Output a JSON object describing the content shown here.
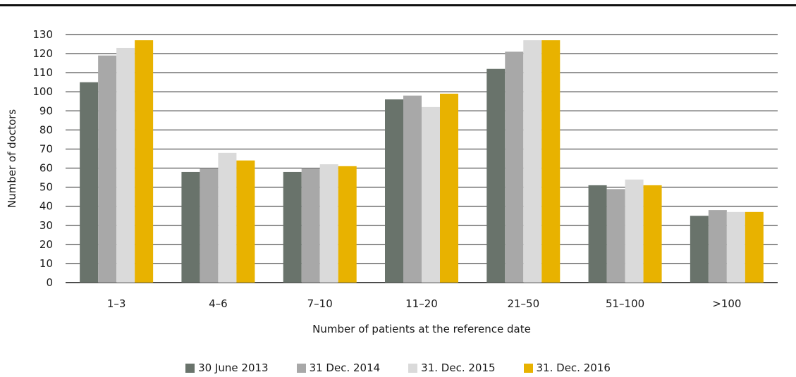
{
  "chart_data": {
    "type": "bar",
    "xlabel": "Number of patients at the reference date",
    "ylabel": "Number of doctors",
    "ylim": [
      0,
      130
    ],
    "yticks": [
      0,
      10,
      20,
      30,
      40,
      50,
      60,
      70,
      80,
      90,
      100,
      110,
      120,
      130
    ],
    "grid": "horizontal",
    "legend_position": "bottom",
    "categories": [
      "1–3",
      "4–6",
      "7–10",
      "11–20",
      "21–50",
      "51–100",
      ">100"
    ],
    "series": [
      {
        "name": "30 June 2013",
        "color": "#69736b",
        "values": [
          105,
          58,
          58,
          96,
          112,
          51,
          35
        ]
      },
      {
        "name": "31 Dec. 2014",
        "color": "#a8a8a8",
        "values": [
          119,
          60,
          60,
          98,
          121,
          49,
          38
        ]
      },
      {
        "name": "31. Dec. 2015",
        "color": "#dadada",
        "values": [
          123,
          68,
          62,
          92,
          127,
          54,
          37
        ]
      },
      {
        "name": "31. Dec. 2016",
        "color": "#e8b200",
        "values": [
          127,
          64,
          61,
          99,
          127,
          51,
          37
        ]
      }
    ]
  }
}
